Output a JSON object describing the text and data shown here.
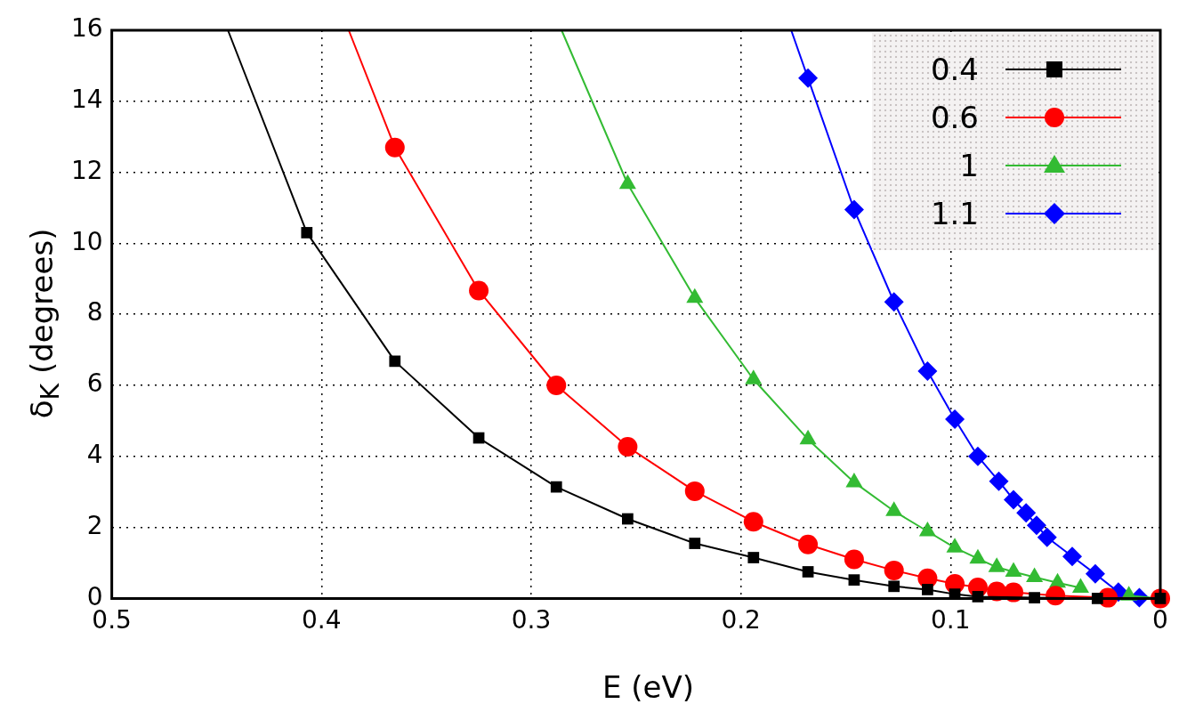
{
  "chart_data": {
    "type": "line",
    "xlabel": "E (eV)",
    "ylabel": "δ$_{K}$ (degrees)",
    "xlim": [
      0.5,
      0
    ],
    "xticks": [
      0.5,
      0.4,
      0.3,
      0.2,
      0.1,
      0
    ],
    "ylim": [
      0,
      16
    ],
    "yticks": [
      0,
      2,
      4,
      6,
      8,
      10,
      12,
      14,
      16
    ],
    "grid": true,
    "legend": "top right",
    "series": [
      {
        "name": "0.4",
        "color": "#000000",
        "marker": "square",
        "x": [
          0.4446,
          0.407,
          0.365,
          0.325,
          0.288,
          0.254,
          0.222,
          0.194,
          0.168,
          0.146,
          0.127,
          0.111,
          0.098,
          0.087,
          0.06,
          0.03,
          0
        ],
        "values": [
          16,
          10.3,
          6.68,
          4.52,
          3.14,
          2.24,
          1.55,
          1.15,
          0.75,
          0.52,
          0.34,
          0.25,
          0.12,
          0.05,
          0.02,
          0,
          0
        ]
      },
      {
        "name": "0.6",
        "color": "#ff0000",
        "marker": "circle",
        "x": [
          0.387,
          0.365,
          0.325,
          0.288,
          0.254,
          0.222,
          0.194,
          0.168,
          0.146,
          0.127,
          0.111,
          0.098,
          0.087,
          0.078,
          0.07,
          0.05,
          0.025,
          0
        ],
        "values": [
          16,
          12.7,
          8.67,
          6.0,
          4.27,
          3.02,
          2.16,
          1.52,
          1.1,
          0.79,
          0.57,
          0.41,
          0.31,
          0.2,
          0.17,
          0.08,
          0.02,
          0
        ]
      },
      {
        "name": "1",
        "color": "#33bb33",
        "marker": "triangle",
        "x": [
          0.2855,
          0.254,
          0.222,
          0.194,
          0.168,
          0.146,
          0.127,
          0.111,
          0.098,
          0.087,
          0.078,
          0.07,
          0.06,
          0.049,
          0.038,
          0.027,
          0.015,
          0
        ],
        "values": [
          16,
          11.67,
          8.46,
          6.17,
          4.48,
          3.27,
          2.46,
          1.89,
          1.43,
          1.12,
          0.88,
          0.75,
          0.6,
          0.44,
          0.3,
          null,
          0.08,
          0
        ]
      },
      {
        "name": "1.1",
        "color": "#0000ff",
        "marker": "diamond",
        "x": [
          0.176,
          0.168,
          0.146,
          0.127,
          0.111,
          0.098,
          0.087,
          0.077,
          0.07,
          0.064,
          0.059,
          0.054,
          0.042,
          0.031,
          0.02,
          0.01,
          0
        ],
        "values": [
          16,
          14.65,
          10.95,
          8.35,
          6.4,
          5.05,
          4.0,
          3.3,
          2.78,
          2.41,
          2.06,
          1.72,
          1.18,
          0.69,
          0.18,
          0.02,
          0
        ]
      }
    ]
  }
}
